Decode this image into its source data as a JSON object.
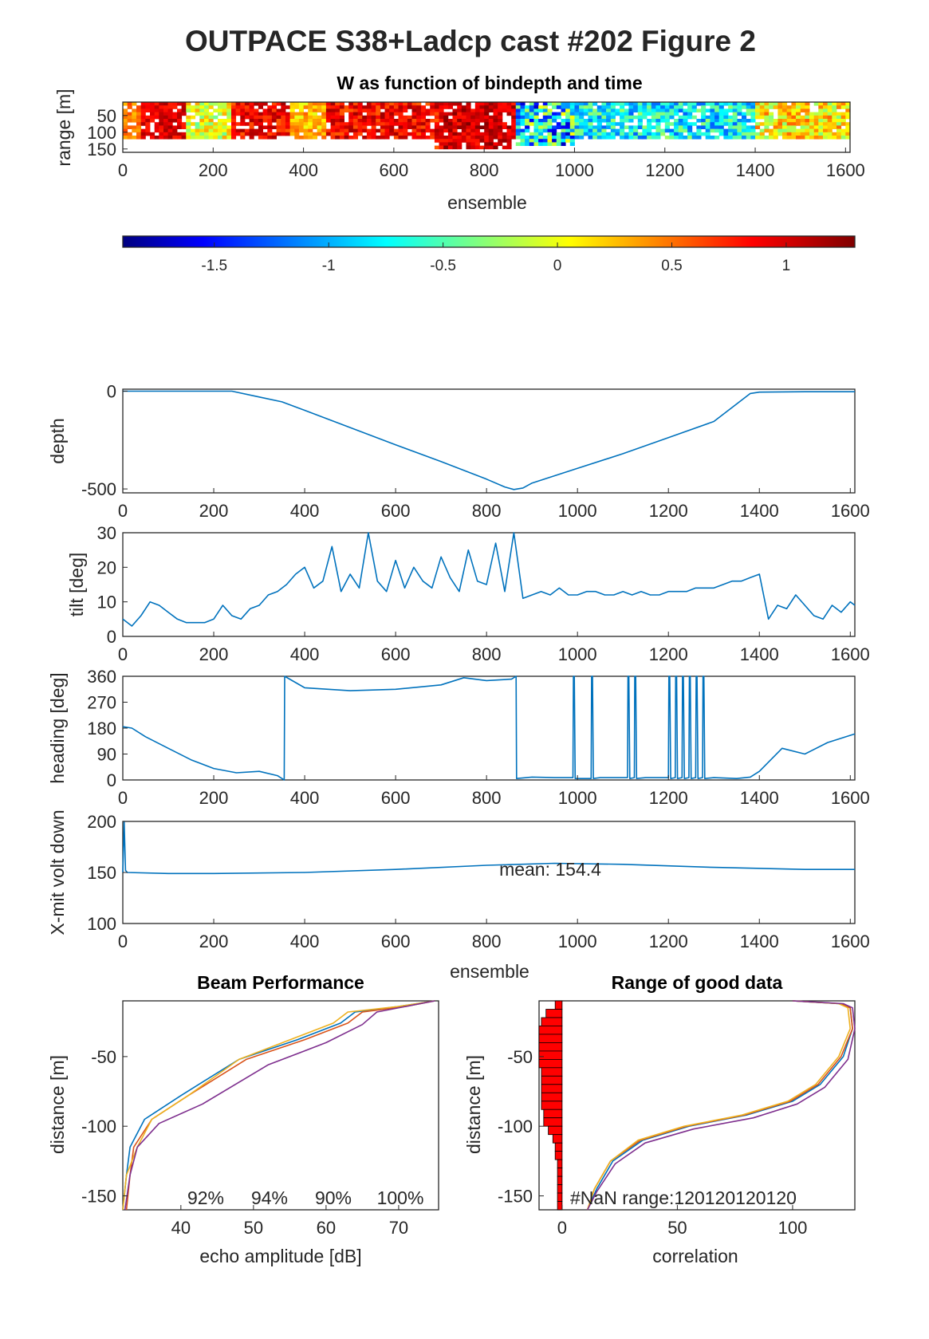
{
  "figure": {
    "title": "OUTPACE S38+Ladcp cast #202 Figure 2"
  },
  "colors": {
    "series": "#0072bd",
    "bar": "#ff0000",
    "line_set": [
      "#0072bd",
      "#d95319",
      "#edb120",
      "#7e2f8e"
    ]
  },
  "chart_data": [
    {
      "id": "w-image",
      "type": "heatmap",
      "title": "W as function of bindepth and time",
      "xlabel": "ensemble",
      "ylabel": "range [m]",
      "xlim": [
        0,
        1610
      ],
      "ylim": [
        160,
        10
      ],
      "xticks": [
        0,
        200,
        400,
        600,
        800,
        1000,
        1200,
        1400,
        1600
      ],
      "yticks": [
        50,
        100,
        150
      ],
      "grid": false
    },
    {
      "id": "colorbar",
      "type": "heatmap",
      "clim": [
        -1.9,
        1.3
      ],
      "ticks": [
        -1.5,
        -1,
        -0.5,
        0,
        0.5,
        1
      ],
      "tick_labels": [
        "-1.5",
        "-1",
        "-0.5",
        "0",
        "0.5",
        "1"
      ]
    },
    {
      "id": "depth",
      "type": "line",
      "xlabel": "",
      "ylabel": "depth",
      "xlim": [
        0,
        1610
      ],
      "ylim": [
        -520,
        10
      ],
      "xticks": [
        0,
        200,
        400,
        600,
        800,
        1000,
        1200,
        1400,
        1600
      ],
      "yticks": [
        0,
        -500
      ],
      "x": [
        0,
        100,
        200,
        240,
        300,
        350,
        400,
        500,
        600,
        700,
        800,
        840,
        860,
        880,
        900,
        1000,
        1100,
        1200,
        1300,
        1380,
        1400,
        1500,
        1610
      ],
      "y": [
        0,
        0,
        0,
        0,
        -30,
        -55,
        -98,
        -186,
        -274,
        -360,
        -450,
        -490,
        -503,
        -495,
        -470,
        -395,
        -320,
        -238,
        -155,
        -12,
        -5,
        -3,
        -3
      ]
    },
    {
      "id": "tilt",
      "type": "line",
      "xlabel": "",
      "ylabel": "tilt [deg]",
      "xlim": [
        0,
        1610
      ],
      "ylim": [
        0,
        30
      ],
      "xticks": [
        0,
        200,
        400,
        600,
        800,
        1000,
        1200,
        1400,
        1600
      ],
      "yticks": [
        0,
        10,
        20,
        30
      ],
      "x": [
        0,
        20,
        40,
        60,
        80,
        100,
        120,
        140,
        160,
        180,
        200,
        220,
        240,
        260,
        280,
        300,
        320,
        340,
        360,
        380,
        400,
        420,
        440,
        460,
        480,
        500,
        520,
        540,
        560,
        580,
        600,
        620,
        640,
        660,
        680,
        700,
        720,
        740,
        760,
        780,
        800,
        820,
        840,
        860,
        880,
        900,
        920,
        940,
        960,
        980,
        1000,
        1020,
        1040,
        1060,
        1080,
        1100,
        1120,
        1140,
        1160,
        1180,
        1200,
        1220,
        1240,
        1260,
        1280,
        1300,
        1320,
        1340,
        1360,
        1380,
        1400,
        1420,
        1440,
        1460,
        1480,
        1500,
        1520,
        1540,
        1560,
        1580,
        1600,
        1610
      ],
      "y": [
        5,
        3,
        6,
        10,
        9,
        7,
        5,
        4,
        4,
        4,
        5,
        9,
        6,
        5,
        8,
        9,
        12,
        13,
        15,
        18,
        20,
        14,
        16,
        26,
        13,
        18,
        14,
        30,
        16,
        13,
        22,
        14,
        20,
        16,
        14,
        23,
        17,
        13,
        25,
        16,
        15,
        27,
        13,
        30,
        11,
        12,
        13,
        12,
        14,
        12,
        12,
        13,
        13,
        12,
        12,
        13,
        12,
        13,
        12,
        12,
        13,
        13,
        13,
        14,
        14,
        14,
        15,
        16,
        16,
        17,
        18,
        5,
        9,
        8,
        12,
        9,
        6,
        5,
        9,
        7,
        10,
        9
      ]
    },
    {
      "id": "heading",
      "type": "line",
      "xlabel": "",
      "ylabel": "heading [deg]",
      "xlim": [
        0,
        1610
      ],
      "ylim": [
        0,
        360
      ],
      "xticks": [
        0,
        200,
        400,
        600,
        800,
        1000,
        1200,
        1400,
        1600
      ],
      "yticks": [
        0,
        90,
        180,
        270,
        360
      ],
      "x": [
        0,
        20,
        50,
        100,
        150,
        200,
        250,
        300,
        340,
        350,
        355,
        356,
        400,
        500,
        600,
        700,
        750,
        800,
        855,
        865,
        866,
        900,
        950,
        990,
        991,
        993,
        995,
        1000,
        1030,
        1031,
        1033,
        1035,
        1050,
        1100,
        1110,
        1111,
        1113,
        1115,
        1125,
        1126,
        1128,
        1130,
        1150,
        1200,
        1201,
        1203,
        1205,
        1215,
        1216,
        1218,
        1220,
        1230,
        1231,
        1233,
        1235,
        1245,
        1246,
        1248,
        1250,
        1260,
        1261,
        1263,
        1265,
        1275,
        1276,
        1278,
        1280,
        1300,
        1350,
        1380,
        1400,
        1450,
        1500,
        1550,
        1610
      ],
      "y": [
        185,
        180,
        150,
        110,
        70,
        40,
        25,
        30,
        15,
        5,
        0,
        360,
        320,
        310,
        315,
        330,
        355,
        345,
        350,
        360,
        5,
        10,
        8,
        8,
        360,
        360,
        5,
        5,
        5,
        360,
        360,
        5,
        8,
        8,
        8,
        360,
        360,
        5,
        8,
        360,
        360,
        5,
        8,
        8,
        360,
        360,
        5,
        8,
        360,
        360,
        5,
        8,
        360,
        360,
        5,
        8,
        360,
        360,
        5,
        8,
        360,
        360,
        5,
        8,
        360,
        360,
        5,
        8,
        5,
        10,
        30,
        110,
        90,
        130,
        160
      ]
    },
    {
      "id": "xmit",
      "type": "line",
      "xlabel": "ensemble",
      "ylabel": "X-mit volt down",
      "xlim": [
        0,
        1610
      ],
      "ylim": [
        100,
        200
      ],
      "xticks": [
        0,
        200,
        400,
        600,
        800,
        1000,
        1200,
        1400,
        1600
      ],
      "yticks": [
        100,
        150,
        200
      ],
      "annotation": "mean: 154.4",
      "x": [
        0,
        3,
        6,
        10,
        100,
        200,
        400,
        600,
        800,
        950,
        1100,
        1300,
        1500,
        1610
      ],
      "y": [
        150,
        200,
        152,
        150,
        149,
        149,
        150,
        153,
        157,
        159,
        158,
        155,
        153,
        153
      ]
    },
    {
      "id": "beam",
      "type": "line",
      "title": "Beam Performance",
      "xlabel": "echo amplitude [dB]",
      "ylabel": "distance [m]",
      "xlim": [
        32,
        75.5
      ],
      "ylim": [
        -160,
        -10
      ],
      "xticks": [
        40,
        50,
        60,
        70
      ],
      "yticks": [
        -50,
        -100,
        -150
      ],
      "annotations": [
        "92%",
        "94%",
        "90%",
        "100%"
      ],
      "series": [
        {
          "x": [
            75,
            70,
            64,
            62,
            56,
            48,
            40,
            35,
            33,
            32.5,
            32
          ],
          "y": [
            -10,
            -14,
            -18,
            -26,
            -38,
            -52,
            -78,
            -95,
            -115,
            -135,
            -160
          ]
        },
        {
          "x": [
            75,
            71,
            65,
            63,
            57,
            49,
            41,
            36,
            33.5,
            33,
            32.5
          ],
          "y": [
            -10,
            -14,
            -18,
            -26,
            -38,
            -52,
            -78,
            -95,
            -115,
            -135,
            -160
          ]
        },
        {
          "x": [
            75,
            70,
            63,
            61,
            55,
            48,
            41,
            36,
            34,
            32.5,
            32
          ],
          "y": [
            -10,
            -14,
            -18,
            -26,
            -38,
            -52,
            -78,
            -95,
            -115,
            -135,
            -160
          ]
        },
        {
          "x": [
            75,
            72,
            67,
            65,
            60,
            52,
            43,
            37,
            34,
            33,
            32.3
          ],
          "y": [
            -10,
            -13,
            -18,
            -27,
            -40,
            -56,
            -84,
            -98,
            -115,
            -135,
            -160
          ]
        }
      ]
    },
    {
      "id": "range",
      "type": "line",
      "title": "Range of good data",
      "xlabel": "correlation",
      "ylabel": "distance [m]",
      "xlim": [
        -10,
        127
      ],
      "ylim": [
        -160,
        -10
      ],
      "xticks": [
        0,
        50,
        100
      ],
      "yticks": [
        -50,
        -100,
        -150
      ],
      "annotation": "#NaN range:120120120120",
      "bars": {
        "y": [
          -10,
          -16,
          -22,
          -28,
          -34,
          -40,
          -46,
          -52,
          -58,
          -64,
          -70,
          -76,
          -82,
          -88,
          -94,
          -100,
          -106,
          -112,
          -118,
          -124,
          -130,
          -136,
          -142,
          -148,
          -154
        ],
        "value": [
          3,
          7,
          9,
          10,
          10,
          10,
          10,
          10,
          9,
          9,
          9,
          9,
          9,
          8,
          8,
          6,
          4,
          3,
          3,
          2,
          2,
          2,
          2,
          2,
          2
        ]
      },
      "series": [
        {
          "x": [
            100,
            120,
            125,
            126,
            122,
            112,
            100,
            80,
            55,
            35,
            22,
            15,
            11
          ],
          "y": [
            -10,
            -12,
            -15,
            -30,
            -50,
            -70,
            -82,
            -92,
            -100,
            -110,
            -125,
            -145,
            -160
          ]
        },
        {
          "x": [
            100,
            121,
            125,
            126,
            121,
            111,
            99,
            79,
            54,
            34,
            21,
            14,
            11
          ],
          "y": [
            -10,
            -12,
            -15,
            -30,
            -50,
            -70,
            -82,
            -92,
            -100,
            -110,
            -125,
            -145,
            -160
          ]
        },
        {
          "x": [
            100,
            120,
            124,
            125,
            120,
            110,
            98,
            78,
            53,
            33,
            21,
            14,
            11
          ],
          "y": [
            -10,
            -12,
            -15,
            -30,
            -50,
            -70,
            -82,
            -92,
            -100,
            -110,
            -125,
            -145,
            -160
          ]
        },
        {
          "x": [
            100,
            122,
            126,
            127,
            124,
            114,
            102,
            83,
            57,
            36,
            23,
            15,
            11
          ],
          "y": [
            -10,
            -12,
            -15,
            -30,
            -52,
            -72,
            -84,
            -94,
            -102,
            -112,
            -127,
            -147,
            -160
          ]
        }
      ]
    }
  ]
}
